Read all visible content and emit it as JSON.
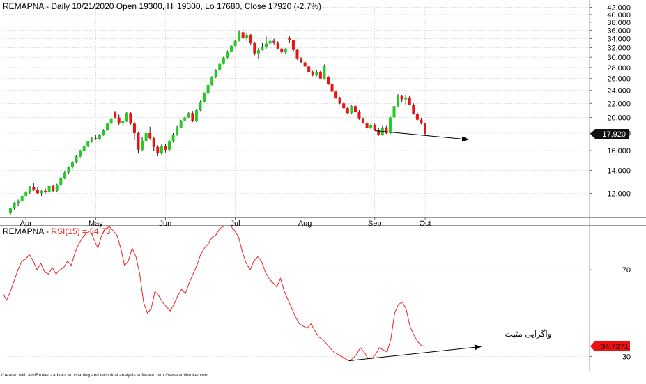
{
  "price_panel": {
    "title": "REMAPNA - Daily 10/21/2020 Open 19300, Hi 19300, Lo 17680, Close 17920 (-2.7%)"
  },
  "rsi_panel": {
    "title_prefix": "REMAPNA - ",
    "title_indicator": "RSI(15) = 34.73",
    "annotation": "واگرایی مثبت"
  },
  "footer": {
    "text": "Created with AmiBroker - advanced charting and technical analysis software. http://www.amibroker.com"
  },
  "colors": {
    "up": "#22cc22",
    "down": "#ee1111",
    "rsi_line": "#ee2222",
    "last_price_marker": "#111111",
    "last_rsi_marker": "#ee1111",
    "grid": "#cccccc"
  },
  "chart_data": [
    {
      "type": "candlestick",
      "title": "REMAPNA - Daily 10/21/2020 Open 19300, Hi 19300, Lo 17680, Close 17920 (-2.7%)",
      "y_scale": "log",
      "ylim": [
        10200,
        42500
      ],
      "yticks": [
        12000,
        14000,
        16000,
        18000,
        20000,
        22000,
        24000,
        26000,
        28000,
        30000,
        32000,
        34000,
        36000,
        38000,
        40000,
        42000
      ],
      "ytick_labels": [
        "12,000",
        "14,000",
        "16,000",
        "18,000",
        "20,000",
        "22,000",
        "24,000",
        "26,000",
        "28,000",
        "30,000",
        "32,000",
        "34,000",
        "36,000",
        "38,000",
        "40,000",
        "42,000"
      ],
      "x_ticks": [
        "Apr",
        "May",
        "Jun",
        "Jul",
        "Aug",
        "Sep",
        "Oct"
      ],
      "last_value_label": "17,920",
      "grid": true,
      "candles": [
        [
          10500,
          10900,
          10400,
          10850
        ],
        [
          10850,
          11300,
          10750,
          11200
        ],
        [
          11200,
          11500,
          11000,
          11400
        ],
        [
          11400,
          11900,
          11300,
          11800
        ],
        [
          11800,
          12200,
          11700,
          12100
        ],
        [
          12100,
          12600,
          11950,
          12500
        ],
        [
          12500,
          12900,
          12200,
          12300
        ],
        [
          12300,
          12500,
          11900,
          12000
        ],
        [
          12000,
          12300,
          11800,
          12200
        ],
        [
          12200,
          12400,
          11900,
          12100
        ],
        [
          12100,
          12700,
          12000,
          12600
        ],
        [
          12600,
          12700,
          12100,
          12200
        ],
        [
          12200,
          12800,
          12100,
          12700
        ],
        [
          12700,
          13400,
          12600,
          13300
        ],
        [
          13300,
          13900,
          13200,
          13800
        ],
        [
          13800,
          14400,
          13700,
          14300
        ],
        [
          14300,
          14900,
          14200,
          14800
        ],
        [
          14800,
          15500,
          14700,
          15400
        ],
        [
          15400,
          16100,
          15300,
          16000
        ],
        [
          16000,
          16600,
          15900,
          16500
        ],
        [
          16500,
          17100,
          16400,
          17000
        ],
        [
          17000,
          17500,
          16900,
          17400
        ],
        [
          17400,
          17800,
          17200,
          17300
        ],
        [
          17300,
          17900,
          17200,
          17800
        ],
        [
          17800,
          18500,
          17700,
          18400
        ],
        [
          18400,
          19300,
          18300,
          19200
        ],
        [
          19200,
          19900,
          19100,
          19800
        ],
        [
          20700,
          20900,
          19800,
          20000
        ],
        [
          20000,
          20400,
          19000,
          19300
        ],
        [
          19300,
          19600,
          18900,
          19500
        ],
        [
          19500,
          20800,
          19400,
          20600
        ],
        [
          20600,
          20800,
          19000,
          19200
        ],
        [
          19200,
          19400,
          17200,
          18000
        ],
        [
          18000,
          18200,
          15700,
          16100
        ],
        [
          16100,
          17500,
          16000,
          17100
        ],
        [
          17100,
          18200,
          17000,
          18000
        ],
        [
          18000,
          18800,
          17200,
          17400
        ],
        [
          17400,
          17600,
          16000,
          16400
        ],
        [
          16400,
          16600,
          15400,
          15700
        ],
        [
          15700,
          16700,
          15600,
          16500
        ],
        [
          16500,
          16700,
          15800,
          16100
        ],
        [
          16100,
          17200,
          16000,
          17000
        ],
        [
          17000,
          18000,
          16900,
          17800
        ],
        [
          17800,
          18900,
          17700,
          18700
        ],
        [
          18700,
          19700,
          18600,
          19600
        ],
        [
          19600,
          20200,
          19500,
          20000
        ],
        [
          20000,
          20800,
          19900,
          20600
        ],
        [
          20600,
          20900,
          19400,
          19500
        ],
        [
          19500,
          21200,
          19400,
          21000
        ],
        [
          21000,
          22400,
          20900,
          22200
        ],
        [
          22200,
          23700,
          22100,
          23500
        ],
        [
          23500,
          25100,
          23400,
          24900
        ],
        [
          24900,
          26400,
          24800,
          26200
        ],
        [
          26200,
          27700,
          26100,
          27500
        ],
        [
          27500,
          28900,
          27400,
          28700
        ],
        [
          28700,
          30100,
          28600,
          29900
        ],
        [
          29900,
          31400,
          29800,
          31200
        ],
        [
          31200,
          32600,
          31100,
          32400
        ],
        [
          32400,
          33700,
          32300,
          33500
        ],
        [
          33500,
          36000,
          33400,
          35500
        ],
        [
          35500,
          36200,
          33800,
          34200
        ],
        [
          34200,
          35300,
          33400,
          34900
        ],
        [
          34900,
          35100,
          32600,
          33000
        ],
        [
          33000,
          33300,
          30400,
          30800
        ],
        [
          30800,
          31900,
          29600,
          31500
        ],
        [
          31500,
          33000,
          31400,
          32200
        ],
        [
          32200,
          34500,
          31800,
          32900
        ],
        [
          32900,
          34500,
          32300,
          33500
        ],
        [
          33500,
          34000,
          32700,
          33200
        ],
        [
          33200,
          33400,
          31600,
          31800
        ],
        [
          31800,
          32000,
          30700,
          31000
        ],
        [
          31000,
          31900,
          30600,
          31700
        ],
        [
          34200,
          34600,
          33000,
          33600
        ],
        [
          33600,
          33800,
          31200,
          31500
        ],
        [
          31500,
          31700,
          29500,
          29800
        ],
        [
          29800,
          30000,
          28800,
          29000
        ],
        [
          29000,
          29200,
          28000,
          28200
        ],
        [
          28200,
          28400,
          27100,
          27200
        ],
        [
          27200,
          27400,
          26400,
          26600
        ],
        [
          26600,
          27500,
          26400,
          27200
        ],
        [
          27200,
          27400,
          25900,
          26000
        ],
        [
          25900,
          28600,
          25800,
          28300
        ],
        [
          26300,
          26500,
          24900,
          25000
        ],
        [
          25000,
          25200,
          23700,
          23800
        ],
        [
          23800,
          24000,
          22700,
          22800
        ],
        [
          22800,
          23000,
          21900,
          22000
        ],
        [
          22000,
          22200,
          21200,
          21300
        ],
        [
          21300,
          21500,
          20500,
          20600
        ],
        [
          20600,
          21800,
          20500,
          21600
        ],
        [
          21600,
          21800,
          20700,
          20800
        ],
        [
          20800,
          21000,
          19700,
          19800
        ],
        [
          19800,
          20000,
          19200,
          19300
        ],
        [
          19300,
          19500,
          18500,
          18600
        ],
        [
          18600,
          19200,
          18500,
          19000
        ],
        [
          19000,
          19200,
          18300,
          18400
        ],
        [
          18400,
          18600,
          17700,
          17800
        ],
        [
          17800,
          18900,
          17700,
          18700
        ],
        [
          18700,
          18900,
          17900,
          18000
        ],
        [
          18000,
          20200,
          17900,
          20000
        ],
        [
          20000,
          21800,
          19900,
          21600
        ],
        [
          21600,
          23400,
          21500,
          23100
        ],
        [
          23100,
          23300,
          22200,
          22600
        ],
        [
          22600,
          23200,
          21800,
          22900
        ],
        [
          22900,
          23100,
          21700,
          21800
        ],
        [
          21800,
          22000,
          20400,
          20500
        ],
        [
          20500,
          20700,
          19600,
          19700
        ],
        [
          19700,
          19900,
          19100,
          19300
        ],
        [
          19300,
          19300,
          17680,
          17920
        ]
      ]
    },
    {
      "type": "line",
      "title": "REMAPNA - RSI(15) = 34.73",
      "ylim": [
        24,
        90
      ],
      "yticks": [
        30,
        70
      ],
      "ytick_labels": [
        "30",
        "70"
      ],
      "last_value_label": "34.7271",
      "grid": false,
      "series": [
        {
          "name": "RSI(15)",
          "values": [
            59,
            56,
            60,
            65,
            70,
            74,
            75,
            77,
            74,
            70,
            73,
            69,
            68,
            71,
            68,
            70,
            71,
            74,
            72,
            78,
            82,
            85,
            87,
            88,
            84,
            80,
            86,
            89,
            90,
            88,
            86,
            80,
            72,
            74,
            80,
            76,
            68,
            55,
            50,
            52,
            60,
            58,
            55,
            53,
            51,
            54,
            58,
            61,
            59,
            64,
            68,
            72,
            77,
            80,
            82,
            85,
            86,
            89,
            90,
            92,
            90,
            88,
            85,
            78,
            73,
            70,
            74,
            76,
            74,
            69,
            66,
            64,
            62,
            66,
            60,
            56,
            52,
            48,
            45,
            44,
            43,
            45,
            42,
            39,
            38,
            36,
            34,
            32,
            31,
            30,
            29,
            28,
            29,
            31,
            34,
            32,
            29,
            29,
            31,
            34,
            33,
            32,
            38,
            50,
            54,
            55,
            52,
            44,
            40,
            37,
            35,
            34.7
          ]
        }
      ]
    }
  ]
}
